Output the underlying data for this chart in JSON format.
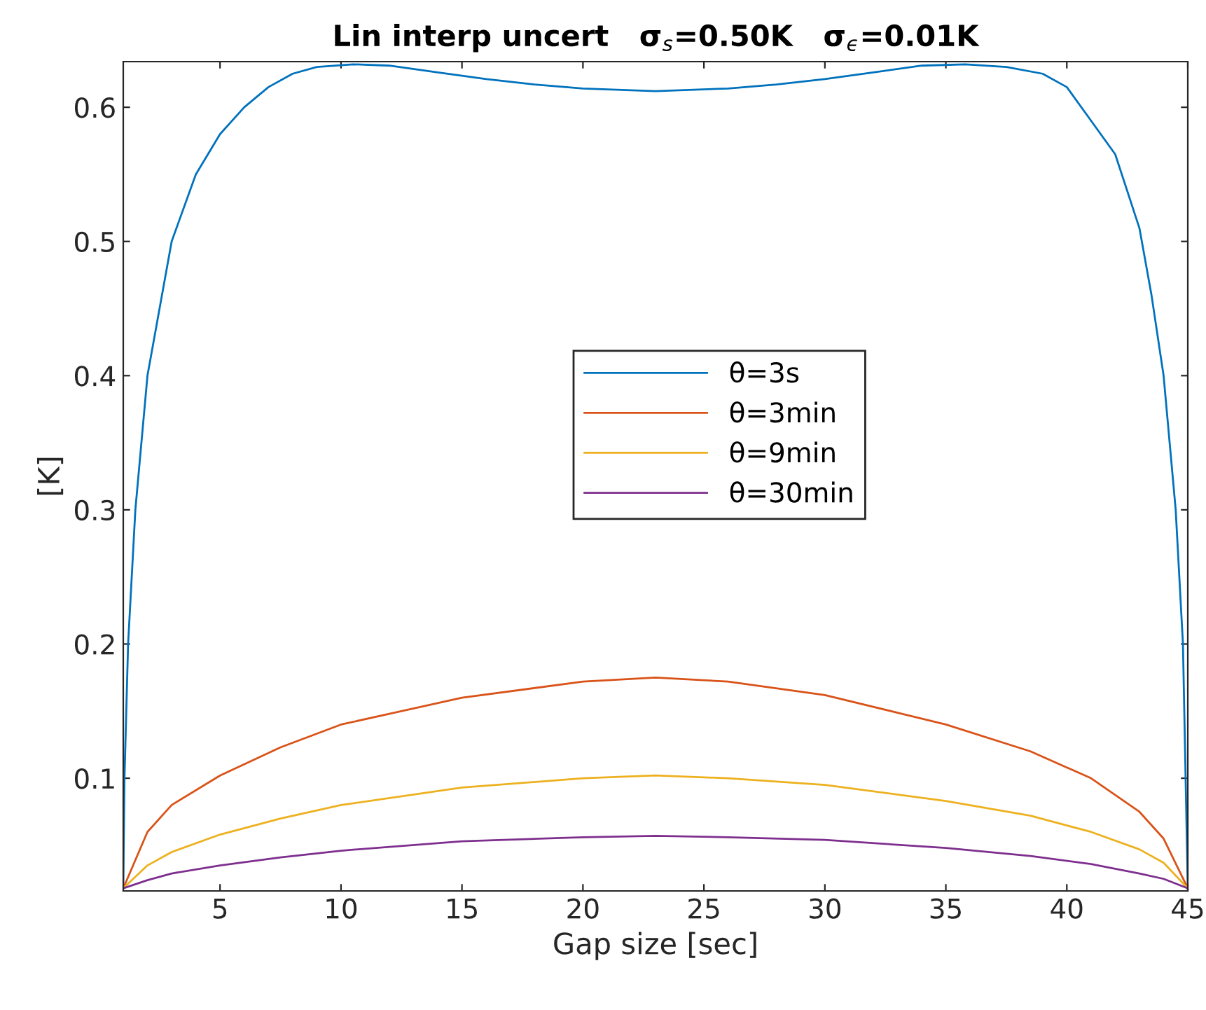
{
  "chart_data": {
    "type": "line",
    "title": "Lin interp uncert   σ$_{s}$=0.50K   σ$_{ϵ}$=0.01K",
    "xlabel": "Gap size [sec]",
    "ylabel": "[K]",
    "xlim": [
      1,
      45
    ],
    "ylim": [
      0.016,
      0.634
    ],
    "xticks": [
      5,
      10,
      15,
      20,
      25,
      30,
      35,
      40,
      45
    ],
    "yticks": [
      0.1,
      0.2,
      0.3,
      0.4,
      0.5,
      0.6
    ],
    "grid": false,
    "legend": "center",
    "marker": "none",
    "line_style": "solid",
    "series": [
      {
        "name": "θ=3s",
        "color": "#0072bd",
        "x": [
          1,
          1.05,
          1.2,
          1.5,
          2,
          3,
          4,
          5,
          6,
          7,
          8,
          9,
          10.5,
          12,
          14,
          16,
          18,
          20,
          23,
          26,
          28,
          30,
          32,
          34,
          35.8,
          37.5,
          39,
          40,
          41,
          42,
          43,
          43.5,
          44,
          44.5,
          44.8,
          45
        ],
        "values": [
          0.018,
          0.1,
          0.2,
          0.3,
          0.4,
          0.5,
          0.55,
          0.58,
          0.6,
          0.615,
          0.625,
          0.63,
          0.632,
          0.631,
          0.626,
          0.621,
          0.617,
          0.614,
          0.612,
          0.614,
          0.617,
          0.621,
          0.626,
          0.631,
          0.632,
          0.63,
          0.625,
          0.615,
          0.59,
          0.565,
          0.51,
          0.46,
          0.4,
          0.3,
          0.2,
          0.018
        ]
      },
      {
        "name": "θ=3min",
        "color": "#d95319",
        "x": [
          1,
          2,
          3,
          5,
          7.5,
          10,
          15,
          20,
          23,
          26,
          30,
          35,
          38.5,
          41,
          43,
          44,
          45
        ],
        "values": [
          0.018,
          0.06,
          0.08,
          0.102,
          0.123,
          0.14,
          0.16,
          0.172,
          0.175,
          0.172,
          0.162,
          0.14,
          0.12,
          0.1,
          0.075,
          0.055,
          0.018
        ]
      },
      {
        "name": "θ=9min",
        "color": "#edb120",
        "x": [
          1,
          2,
          3,
          5,
          7.5,
          10,
          15,
          20,
          23,
          26,
          30,
          35,
          38.5,
          41,
          43,
          44,
          45
        ],
        "values": [
          0.018,
          0.035,
          0.045,
          0.058,
          0.07,
          0.08,
          0.093,
          0.1,
          0.102,
          0.1,
          0.095,
          0.083,
          0.072,
          0.06,
          0.047,
          0.037,
          0.018
        ]
      },
      {
        "name": "θ=30min",
        "color": "#7e2f8e",
        "x": [
          1,
          2,
          3,
          5,
          7.5,
          10,
          15,
          20,
          23,
          26,
          30,
          35,
          38.5,
          41,
          43,
          44,
          45
        ],
        "values": [
          0.018,
          0.024,
          0.029,
          0.035,
          0.041,
          0.046,
          0.053,
          0.056,
          0.057,
          0.056,
          0.054,
          0.048,
          0.042,
          0.036,
          0.029,
          0.025,
          0.018
        ]
      }
    ]
  }
}
